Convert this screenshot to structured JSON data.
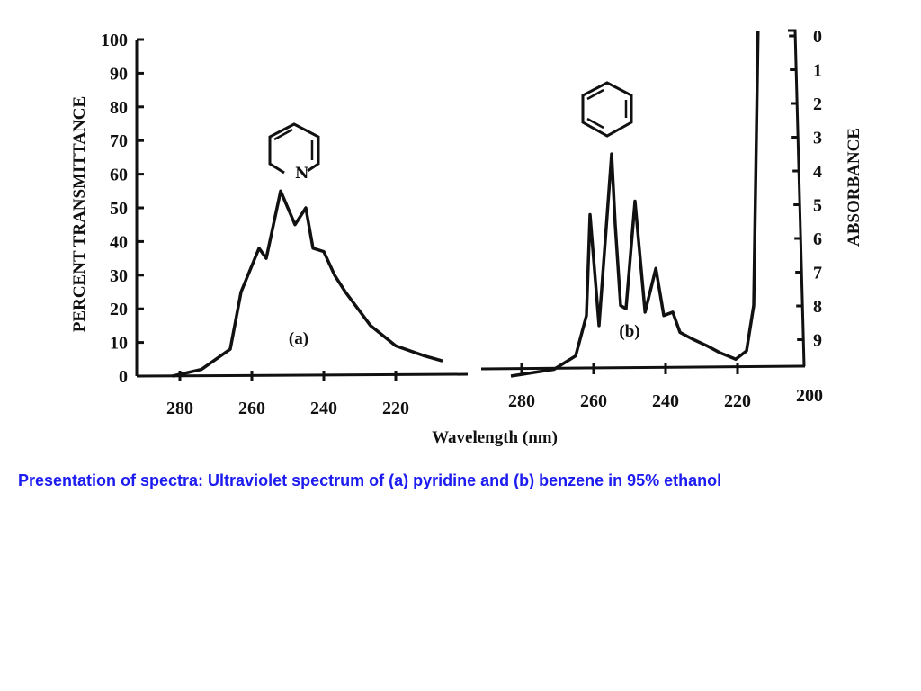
{
  "chart_data": [
    {
      "type": "line",
      "title": "(a)",
      "compound": "pyridine",
      "xlabel": "Wavelength (nm)",
      "ylabel": "PERCENT TRANSMITTANCE",
      "xlim": [
        292,
        205
      ],
      "ylim": [
        0,
        100
      ],
      "xticks": [
        280,
        260,
        240,
        220
      ],
      "yticks": [
        0,
        10,
        20,
        30,
        40,
        50,
        60,
        70,
        80,
        90,
        100
      ],
      "ring_label": "N",
      "series": [
        {
          "name": "pyridine",
          "x": [
            282,
            274,
            266,
            263,
            258,
            256,
            252,
            248,
            245,
            243,
            240,
            237,
            234,
            227,
            220,
            212,
            207
          ],
          "y": [
            0,
            2,
            8,
            25,
            38,
            35,
            55,
            45,
            50,
            38,
            37,
            30,
            25,
            15,
            9,
            6,
            4.5
          ]
        }
      ]
    },
    {
      "type": "line",
      "title": "(b)",
      "compound": "benzene",
      "xlabel": "Wavelength (nm)",
      "ylabel": "ABSORBANCE",
      "xlim": [
        292,
        200
      ],
      "xticks": [
        280,
        260,
        240,
        220,
        200
      ],
      "yticks_right": [
        0,
        1,
        2,
        3,
        4,
        5,
        6,
        7,
        8,
        9
      ],
      "series": [
        {
          "name": "benzene",
          "x": [
            283,
            271,
            268,
            265,
            262,
            261,
            258.5,
            255,
            254,
            252.5,
            251,
            248.5,
            245.7,
            242.7,
            240.5,
            238,
            236,
            232.5,
            228.5,
            225,
            220.5,
            217.5,
            215.5,
            214.3
          ],
          "y": [
            0,
            2,
            4,
            6,
            18,
            48,
            15,
            66,
            45,
            21,
            20,
            52,
            19,
            32,
            18,
            19,
            13,
            11,
            9,
            7,
            5,
            7.5,
            21,
            103
          ]
        }
      ]
    }
  ],
  "shared_xlabel": "Wavelength (nm)",
  "caption": "Presentation of spectra: Ultraviolet spectrum of (a) pyridine and (b) benzene in 95% ethanol"
}
